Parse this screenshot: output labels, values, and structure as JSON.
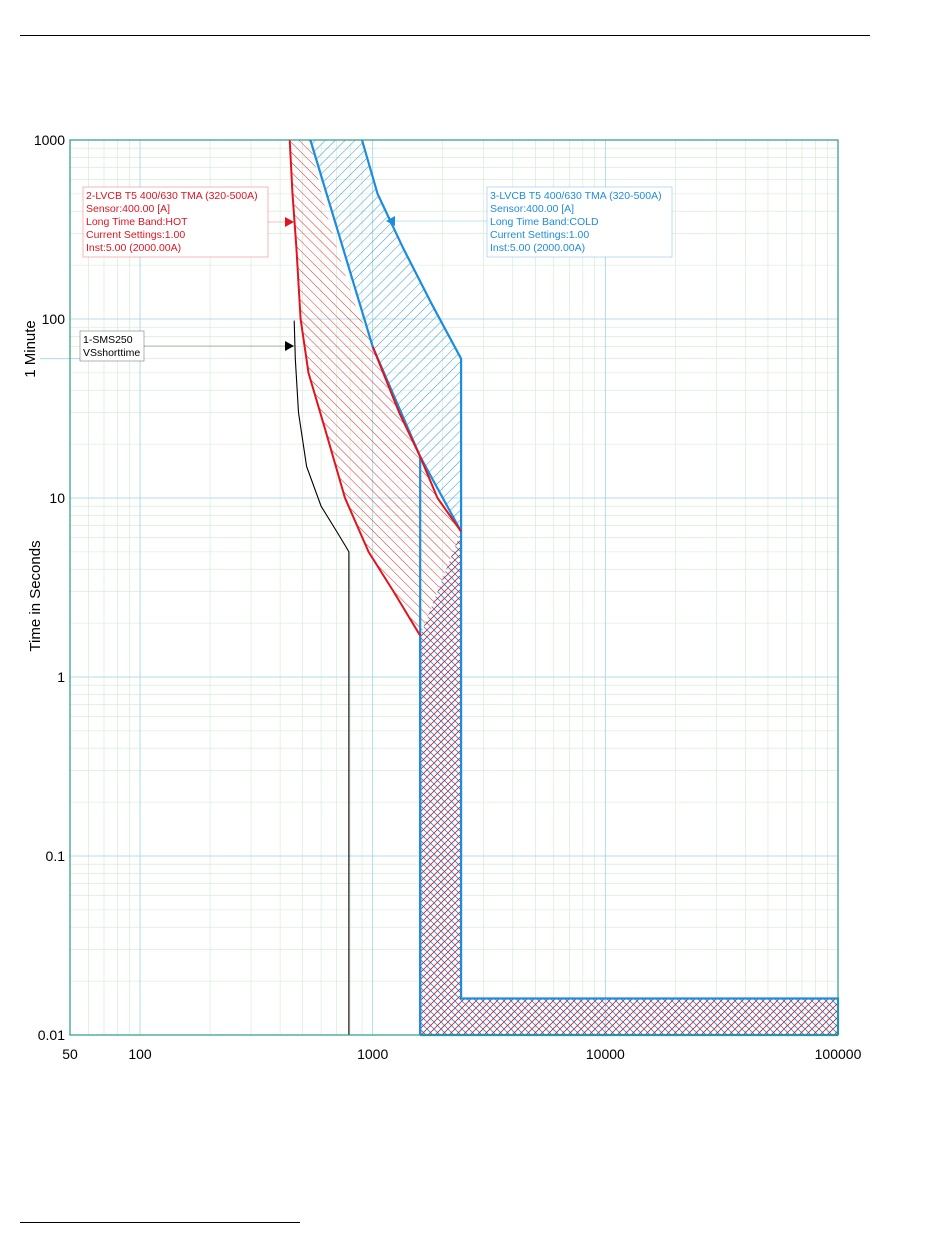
{
  "chart_data": {
    "type": "line",
    "xscale": "log",
    "yscale": "log",
    "xlim": [
      50,
      100000
    ],
    "ylim": [
      0.01,
      1000
    ],
    "xticks": [
      "50",
      "100",
      "1000",
      "10000",
      "100000"
    ],
    "yticks": [
      "0.01",
      "0.1",
      "1",
      "10",
      "100",
      "1000"
    ],
    "ylabel": "Time in Seconds",
    "y_marker_label": "1 Minute",
    "xlabel": "",
    "grid": true,
    "colors": {
      "red": "#e0141e",
      "blue": "#1e8cdc",
      "black": "#000000",
      "major_grid": "#9fd3e3",
      "minor_grid": "#cfead0"
    },
    "series": [
      {
        "name": "1-SMS250",
        "style": "line",
        "color": "#000000",
        "x": [
          460,
          465,
          480,
          520,
          600,
          700,
          770,
          790,
          790
        ],
        "y": [
          98,
          60,
          30,
          15,
          9,
          6.5,
          5.3,
          5,
          0.01
        ]
      },
      {
        "name": "2-LVCB T5 400/630 TMA (320-500A)",
        "style": "band",
        "color": "#e0141e",
        "left": {
          "x": [
            440,
            452,
            470,
            490,
            530,
            620,
            760,
            960,
            1230,
            1600
          ],
          "y": [
            1000,
            500,
            250,
            100,
            50,
            25,
            10,
            5,
            3,
            1.7
          ]
        },
        "right": {
          "x": [
            540,
            600,
            700,
            820,
            1000,
            1300,
            1600,
            1900,
            2400
          ],
          "y": [
            1000,
            500,
            250,
            130,
            70,
            30,
            17,
            10,
            6.5
          ]
        }
      },
      {
        "name": "3-LVCB T5 400/630 TMA (320-500A)",
        "style": "band",
        "color": "#1e8cdc",
        "left_x": 1600,
        "right_x": 2400,
        "bottom_y": 0.01,
        "top_y": 0.016,
        "upper": {
          "x": [
            540,
            1000,
            1600,
            2400
          ],
          "y": [
            1000,
            70,
            17,
            6.5
          ]
        },
        "outer": {
          "x": [
            900,
            1050,
            1350,
            1800,
            2400,
            2400,
            100000,
            100000
          ],
          "y": [
            1000,
            500,
            250,
            120,
            60,
            0.016,
            0.016,
            0.01
          ]
        }
      }
    ],
    "annotations": [
      {
        "id": "sms",
        "color": "#000000",
        "lines": [
          "1-SMS250",
          "VSshorttime"
        ]
      },
      {
        "id": "lvcb2",
        "color": "#e0141e",
        "lines": [
          "2-LVCB T5 400/630 TMA (320-500A)",
          "Sensor:400.00 [A]",
          "Long Time Band:HOT",
          "Current Settings:1.00",
          "Inst:5.00 (2000.00A)"
        ]
      },
      {
        "id": "lvcb3",
        "color": "#1e8cdc",
        "lines": [
          "3-LVCB T5 400/630 TMA (320-500A)",
          "Sensor:400.00 [A]",
          "Long Time Band:COLD",
          "Current Settings:1.00",
          "Inst:5.00 (2000.00A)"
        ]
      }
    ]
  }
}
